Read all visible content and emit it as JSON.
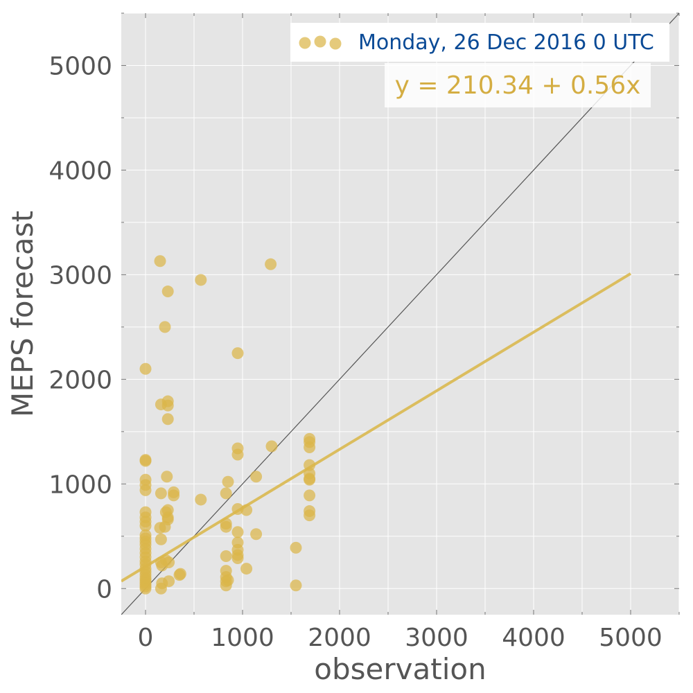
{
  "chart_data": {
    "type": "scatter",
    "xlabel": "observation",
    "ylabel": "MEPS forecast",
    "xlim": [
      -250,
      5500
    ],
    "ylim": [
      -250,
      5500
    ],
    "xticks": [
      0,
      1000,
      2000,
      3000,
      4000,
      5000
    ],
    "yticks": [
      0,
      1000,
      2000,
      3000,
      4000,
      5000
    ],
    "grid": true,
    "legend_position": "top-right",
    "legend_label": "Monday, 26 Dec 2016 0 UTC",
    "equation_label": "y = 210.34 + 0.56x",
    "colors": {
      "points": "#dbb54a",
      "fit_line": "#d9b84f",
      "legend_text": "#0a4a96",
      "equation_text": "#d4ad42",
      "background": "#e5e5e5",
      "grid": "#ffffff",
      "identity_line": "#555555"
    },
    "identity_line": {
      "x": [
        -250,
        5500
      ],
      "y": [
        -250,
        5500
      ]
    },
    "regression": {
      "intercept": 210.34,
      "slope": 0.56,
      "x_range": [
        -250,
        5000
      ]
    },
    "series": [
      {
        "points": [
          [
            0,
            0
          ],
          [
            0,
            20
          ],
          [
            0,
            40
          ],
          [
            0,
            60
          ],
          [
            0,
            80
          ],
          [
            0,
            100
          ],
          [
            0,
            130
          ],
          [
            0,
            160
          ],
          [
            0,
            190
          ],
          [
            0,
            230
          ],
          [
            0,
            260
          ],
          [
            0,
            300
          ],
          [
            0,
            340
          ],
          [
            0,
            380
          ],
          [
            0,
            420
          ],
          [
            0,
            450
          ],
          [
            0,
            480
          ],
          [
            0,
            510
          ],
          [
            0,
            600
          ],
          [
            0,
            640
          ],
          [
            0,
            680
          ],
          [
            0,
            730
          ],
          [
            0,
            940
          ],
          [
            0,
            990
          ],
          [
            0,
            1040
          ],
          [
            0,
            1220
          ],
          [
            0,
            1230
          ],
          [
            0,
            2100
          ],
          [
            150,
            3130
          ],
          [
            160,
            1760
          ],
          [
            160,
            910
          ],
          [
            150,
            580
          ],
          [
            160,
            470
          ],
          [
            160,
            250
          ],
          [
            170,
            220
          ],
          [
            170,
            50
          ],
          [
            160,
            0
          ],
          [
            200,
            2500
          ],
          [
            200,
            590
          ],
          [
            220,
            1070
          ],
          [
            210,
            730
          ],
          [
            210,
            270
          ],
          [
            230,
            2840
          ],
          [
            230,
            1790
          ],
          [
            230,
            1750
          ],
          [
            230,
            1620
          ],
          [
            230,
            750
          ],
          [
            230,
            680
          ],
          [
            230,
            660
          ],
          [
            240,
            250
          ],
          [
            240,
            70
          ],
          [
            290,
            920
          ],
          [
            290,
            890
          ],
          [
            350,
            130
          ],
          [
            360,
            140
          ],
          [
            570,
            2950
          ],
          [
            570,
            850
          ],
          [
            830,
            910
          ],
          [
            830,
            620
          ],
          [
            830,
            590
          ],
          [
            830,
            310
          ],
          [
            830,
            170
          ],
          [
            830,
            110
          ],
          [
            830,
            70
          ],
          [
            830,
            30
          ],
          [
            850,
            1020
          ],
          [
            850,
            80
          ],
          [
            950,
            2250
          ],
          [
            950,
            1340
          ],
          [
            950,
            1280
          ],
          [
            950,
            760
          ],
          [
            950,
            540
          ],
          [
            950,
            440
          ],
          [
            950,
            370
          ],
          [
            950,
            320
          ],
          [
            950,
            290
          ],
          [
            1040,
            750
          ],
          [
            1040,
            190
          ],
          [
            1140,
            1070
          ],
          [
            1140,
            520
          ],
          [
            1290,
            3100
          ],
          [
            1300,
            1360
          ],
          [
            1550,
            390
          ],
          [
            1550,
            30
          ],
          [
            1690,
            1430
          ],
          [
            1690,
            1400
          ],
          [
            1690,
            1350
          ],
          [
            1690,
            1180
          ],
          [
            1690,
            1100
          ],
          [
            1690,
            1050
          ],
          [
            1690,
            1040
          ],
          [
            1690,
            890
          ],
          [
            1690,
            740
          ],
          [
            1690,
            700
          ]
        ]
      }
    ]
  }
}
